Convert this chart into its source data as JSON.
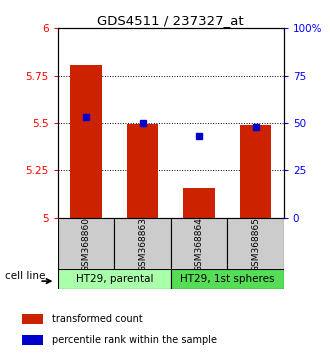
{
  "title": "GDS4511 / 237327_at",
  "samples": [
    "GSM368860",
    "GSM368863",
    "GSM368864",
    "GSM368865"
  ],
  "red_values": [
    5.805,
    5.495,
    5.155,
    5.49
  ],
  "blue_values": [
    53,
    50,
    43,
    48
  ],
  "ylim_left": [
    5.0,
    6.0
  ],
  "ylim_right": [
    0,
    100
  ],
  "yticks_left": [
    5.0,
    5.25,
    5.5,
    5.75,
    6.0
  ],
  "ytick_labels_left": [
    "5",
    "5.25",
    "5.5",
    "5.75",
    "6"
  ],
  "yticks_right": [
    0,
    25,
    50,
    75,
    100
  ],
  "ytick_labels_right": [
    "0",
    "25",
    "50",
    "75",
    "100%"
  ],
  "groups": [
    {
      "label": "HT29, parental",
      "indices": [
        0,
        1
      ],
      "color": "#aaffaa"
    },
    {
      "label": "HT29, 1st spheres",
      "indices": [
        2,
        3
      ],
      "color": "#55dd55"
    }
  ],
  "bar_color": "#cc2200",
  "dot_color": "#0000cc",
  "sample_box_color": "#cccccc",
  "legend_red_label": "transformed count",
  "legend_blue_label": "percentile rank within the sample",
  "cell_line_label": "cell line"
}
